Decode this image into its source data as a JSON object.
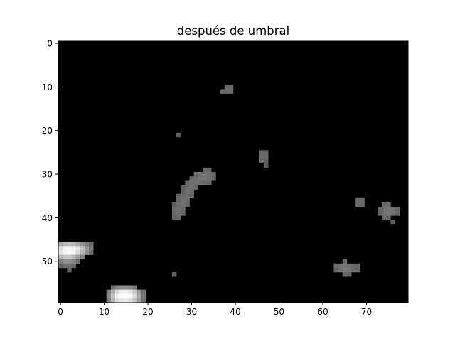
{
  "chart_data": {
    "type": "heatmap",
    "title": "después de umbral",
    "xlabel": "",
    "ylabel": "",
    "colormap": "gray",
    "background_value": 0,
    "grid": false,
    "xlim": [
      -0.5,
      79.5
    ],
    "ylim": [
      59.5,
      -0.5
    ],
    "xticks": [
      0,
      10,
      20,
      30,
      40,
      50,
      60,
      70
    ],
    "yticks": [
      0,
      10,
      20,
      30,
      40,
      50
    ],
    "xtick_labels": [
      "0",
      "10",
      "20",
      "30",
      "40",
      "50",
      "60",
      "70"
    ],
    "ytick_labels": [
      "0",
      "10",
      "20",
      "30",
      "40",
      "50"
    ],
    "nonzero_pixels": [
      [
        38,
        10,
        0.42
      ],
      [
        39,
        10,
        0.42
      ],
      [
        37,
        11,
        0.42
      ],
      [
        38,
        11,
        0.42
      ],
      [
        39,
        11,
        0.42
      ],
      [
        27,
        21,
        0.36
      ],
      [
        46,
        25,
        0.4
      ],
      [
        47,
        25,
        0.4
      ],
      [
        46,
        26,
        0.42
      ],
      [
        47,
        26,
        0.42
      ],
      [
        46,
        27,
        0.4
      ],
      [
        47,
        27,
        0.38
      ],
      [
        47,
        28,
        0.36
      ],
      [
        33,
        29,
        0.42
      ],
      [
        34,
        29,
        0.4
      ],
      [
        31,
        30,
        0.4
      ],
      [
        32,
        30,
        0.44
      ],
      [
        33,
        30,
        0.46
      ],
      [
        34,
        30,
        0.44
      ],
      [
        35,
        30,
        0.4
      ],
      [
        30,
        31,
        0.4
      ],
      [
        31,
        31,
        0.44
      ],
      [
        32,
        31,
        0.46
      ],
      [
        33,
        31,
        0.46
      ],
      [
        34,
        31,
        0.44
      ],
      [
        35,
        31,
        0.4
      ],
      [
        29,
        32,
        0.4
      ],
      [
        30,
        32,
        0.44
      ],
      [
        31,
        32,
        0.44
      ],
      [
        32,
        32,
        0.44
      ],
      [
        33,
        32,
        0.42
      ],
      [
        34,
        32,
        0.4
      ],
      [
        28,
        33,
        0.38
      ],
      [
        29,
        33,
        0.42
      ],
      [
        30,
        33,
        0.44
      ],
      [
        31,
        33,
        0.42
      ],
      [
        28,
        34,
        0.38
      ],
      [
        29,
        34,
        0.44
      ],
      [
        30,
        34,
        0.42
      ],
      [
        27,
        35,
        0.38
      ],
      [
        28,
        35,
        0.42
      ],
      [
        29,
        35,
        0.44
      ],
      [
        30,
        35,
        0.4
      ],
      [
        27,
        36,
        0.4
      ],
      [
        28,
        36,
        0.44
      ],
      [
        29,
        36,
        0.42
      ],
      [
        26,
        37,
        0.38
      ],
      [
        27,
        37,
        0.42
      ],
      [
        28,
        37,
        0.44
      ],
      [
        29,
        37,
        0.4
      ],
      [
        26,
        38,
        0.4
      ],
      [
        27,
        38,
        0.44
      ],
      [
        28,
        38,
        0.42
      ],
      [
        26,
        39,
        0.4
      ],
      [
        27,
        39,
        0.44
      ],
      [
        28,
        39,
        0.42
      ],
      [
        26,
        40,
        0.38
      ],
      [
        27,
        40,
        0.4
      ],
      [
        68,
        36,
        0.42
      ],
      [
        69,
        36,
        0.42
      ],
      [
        68,
        37,
        0.42
      ],
      [
        69,
        37,
        0.42
      ],
      [
        74,
        37,
        0.4
      ],
      [
        75,
        37,
        0.42
      ],
      [
        73,
        38,
        0.4
      ],
      [
        74,
        38,
        0.44
      ],
      [
        75,
        38,
        0.46
      ],
      [
        76,
        38,
        0.44
      ],
      [
        77,
        38,
        0.4
      ],
      [
        73,
        39,
        0.4
      ],
      [
        74,
        39,
        0.44
      ],
      [
        75,
        39,
        0.46
      ],
      [
        76,
        39,
        0.44
      ],
      [
        77,
        39,
        0.4
      ],
      [
        74,
        40,
        0.4
      ],
      [
        75,
        40,
        0.4
      ],
      [
        76,
        41,
        0.36
      ],
      [
        0,
        46,
        0.66
      ],
      [
        1,
        46,
        0.72
      ],
      [
        2,
        46,
        0.74
      ],
      [
        3,
        46,
        0.72
      ],
      [
        4,
        46,
        0.66
      ],
      [
        5,
        46,
        0.56
      ],
      [
        6,
        46,
        0.48
      ],
      [
        7,
        46,
        0.42
      ],
      [
        0,
        47,
        0.88
      ],
      [
        1,
        47,
        0.94
      ],
      [
        2,
        47,
        0.96
      ],
      [
        3,
        47,
        0.94
      ],
      [
        4,
        47,
        0.88
      ],
      [
        5,
        47,
        0.74
      ],
      [
        6,
        47,
        0.58
      ],
      [
        7,
        47,
        0.46
      ],
      [
        0,
        48,
        0.9
      ],
      [
        1,
        48,
        0.96
      ],
      [
        2,
        48,
        0.98
      ],
      [
        3,
        48,
        0.96
      ],
      [
        4,
        48,
        0.86
      ],
      [
        5,
        48,
        0.7
      ],
      [
        6,
        48,
        0.56
      ],
      [
        7,
        48,
        0.44
      ],
      [
        0,
        49,
        0.72
      ],
      [
        1,
        49,
        0.78
      ],
      [
        2,
        49,
        0.78
      ],
      [
        3,
        49,
        0.72
      ],
      [
        4,
        49,
        0.62
      ],
      [
        5,
        49,
        0.5
      ],
      [
        0,
        50,
        0.5
      ],
      [
        1,
        50,
        0.56
      ],
      [
        2,
        50,
        0.56
      ],
      [
        3,
        50,
        0.52
      ],
      [
        4,
        50,
        0.44
      ],
      [
        0,
        51,
        0.4
      ],
      [
        1,
        51,
        0.44
      ],
      [
        2,
        51,
        0.44
      ],
      [
        3,
        51,
        0.4
      ],
      [
        2,
        52,
        0.36
      ],
      [
        26,
        53,
        0.38
      ],
      [
        65,
        50,
        0.4
      ],
      [
        63,
        51,
        0.42
      ],
      [
        64,
        51,
        0.44
      ],
      [
        65,
        51,
        0.46
      ],
      [
        66,
        51,
        0.44
      ],
      [
        67,
        51,
        0.42
      ],
      [
        68,
        51,
        0.4
      ],
      [
        63,
        52,
        0.4
      ],
      [
        64,
        52,
        0.44
      ],
      [
        65,
        52,
        0.46
      ],
      [
        66,
        52,
        0.44
      ],
      [
        67,
        52,
        0.42
      ],
      [
        68,
        52,
        0.4
      ],
      [
        65,
        53,
        0.4
      ],
      [
        66,
        53,
        0.4
      ],
      [
        12,
        56,
        0.44
      ],
      [
        13,
        56,
        0.52
      ],
      [
        14,
        56,
        0.56
      ],
      [
        15,
        56,
        0.56
      ],
      [
        16,
        56,
        0.54
      ],
      [
        17,
        56,
        0.48
      ],
      [
        11,
        57,
        0.48
      ],
      [
        12,
        57,
        0.68
      ],
      [
        13,
        57,
        0.84
      ],
      [
        14,
        57,
        0.92
      ],
      [
        15,
        57,
        0.94
      ],
      [
        16,
        57,
        0.9
      ],
      [
        17,
        57,
        0.8
      ],
      [
        18,
        57,
        0.6
      ],
      [
        19,
        57,
        0.44
      ],
      [
        11,
        58,
        0.52
      ],
      [
        12,
        58,
        0.76
      ],
      [
        13,
        58,
        0.94
      ],
      [
        14,
        58,
        1.0
      ],
      [
        15,
        58,
        1.0
      ],
      [
        16,
        58,
        0.98
      ],
      [
        17,
        58,
        0.88
      ],
      [
        18,
        58,
        0.66
      ],
      [
        19,
        58,
        0.46
      ],
      [
        11,
        59,
        0.48
      ],
      [
        12,
        59,
        0.7
      ],
      [
        13,
        59,
        0.86
      ],
      [
        14,
        59,
        0.92
      ],
      [
        15,
        59,
        0.92
      ],
      [
        16,
        59,
        0.88
      ],
      [
        17,
        59,
        0.78
      ],
      [
        18,
        59,
        0.6
      ],
      [
        19,
        59,
        0.44
      ]
    ]
  }
}
